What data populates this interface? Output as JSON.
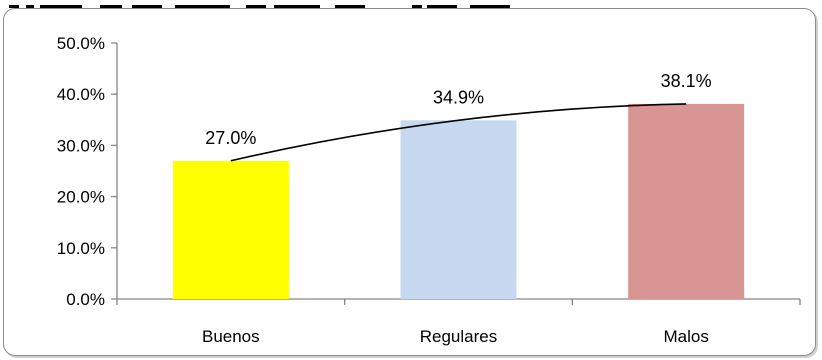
{
  "chart_data": {
    "type": "bar",
    "categories": [
      "Buenos",
      "Regulares",
      "Malos"
    ],
    "values": [
      27.0,
      34.9,
      38.1
    ],
    "value_labels": [
      "27.0%",
      "34.9%",
      "38.1%"
    ],
    "y_tick_labels": [
      "0.0%",
      "10.0%",
      "20.0%",
      "30.0%",
      "40.0%",
      "50.0%"
    ],
    "ylim": [
      0,
      50
    ],
    "grid": false,
    "legend": "none",
    "trendline": true,
    "colors": [
      "#ffff00",
      "#c6d9f1",
      "#d99594"
    ],
    "axis_color": "#868686",
    "trendline_color": "#000000"
  }
}
